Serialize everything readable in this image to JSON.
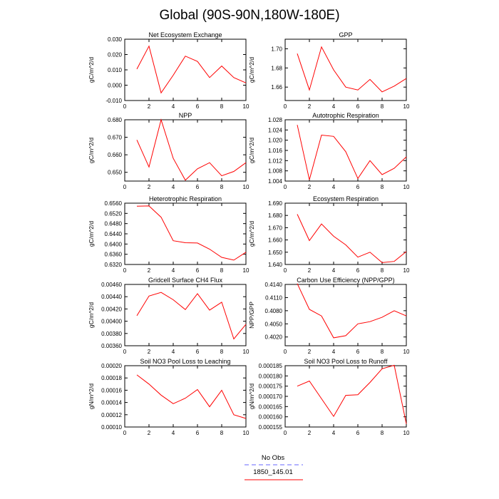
{
  "title": "Global (90S-90N,180W-180E)",
  "colors": {
    "model_line": "#ff0000",
    "obs_line": "#6666ff",
    "axes": "#000000"
  },
  "legend": [
    {
      "label": "No Obs",
      "color": "#6666ff",
      "dash": true
    },
    {
      "label": "1850_145.01",
      "color": "#ff0000",
      "dash": false
    }
  ],
  "chart_data": [
    {
      "type": "line",
      "title": "Net Ecosystem Exchange",
      "ylabel": "gC/m^2/d",
      "xlim": [
        0,
        10
      ],
      "xticks": [
        "0",
        "2",
        "4",
        "6",
        "8",
        "10"
      ],
      "ylim": [
        -0.01,
        0.03
      ],
      "yticks": [
        "-0.010",
        "0.000",
        "0.010",
        "0.020",
        "0.030"
      ],
      "series": [
        {
          "x": [
            1,
            2,
            3,
            4,
            5,
            6,
            7,
            8,
            9,
            10
          ],
          "values": [
            0.0105,
            0.0255,
            -0.005,
            0.0065,
            0.019,
            0.0155,
            0.005,
            0.0125,
            0.005,
            0.0015
          ]
        }
      ]
    },
    {
      "type": "line",
      "title": "GPP",
      "ylabel": "gC/m^2/d",
      "xlim": [
        0,
        10
      ],
      "xticks": [
        "0",
        "2",
        "4",
        "6",
        "8",
        "10"
      ],
      "ylim": [
        1.646,
        1.71
      ],
      "yticks": [
        "1.66",
        "1.68",
        "1.70"
      ],
      "series": [
        {
          "x": [
            1,
            2,
            3,
            4,
            5,
            6,
            7,
            8,
            9,
            10
          ],
          "values": [
            1.695,
            1.657,
            1.702,
            1.678,
            1.66,
            1.657,
            1.668,
            1.655,
            1.661,
            1.669
          ]
        }
      ]
    },
    {
      "type": "line",
      "title": "NPP",
      "ylabel": "gC/m^2/d",
      "xlim": [
        0,
        10
      ],
      "xticks": [
        "0",
        "2",
        "4",
        "6",
        "8",
        "10"
      ],
      "ylim": [
        0.645,
        0.68
      ],
      "yticks": [
        "0.650",
        "0.660",
        "0.670",
        "0.680"
      ],
      "series": [
        {
          "x": [
            1,
            2,
            3,
            4,
            5,
            6,
            7,
            8,
            9,
            10
          ],
          "values": [
            0.6685,
            0.653,
            0.68,
            0.658,
            0.6455,
            0.652,
            0.6555,
            0.648,
            0.6505,
            0.6555
          ]
        }
      ]
    },
    {
      "type": "line",
      "title": "Autotrophic Respiration",
      "ylabel": "gC/m^2/d",
      "xlim": [
        0,
        10
      ],
      "xticks": [
        "0",
        "2",
        "4",
        "6",
        "8",
        "10"
      ],
      "ylim": [
        1.004,
        1.028
      ],
      "yticks": [
        "1.004",
        "1.008",
        "1.012",
        "1.016",
        "1.020",
        "1.024",
        "1.028"
      ],
      "series": [
        {
          "x": [
            1,
            2,
            3,
            4,
            5,
            6,
            7,
            8,
            9,
            10
          ],
          "values": [
            1.026,
            1.0045,
            1.022,
            1.0215,
            1.0155,
            1.005,
            1.012,
            1.0065,
            1.009,
            1.0135
          ]
        }
      ]
    },
    {
      "type": "line",
      "title": "Heterotrophic Respiration",
      "ylabel": "gC/m^2/d",
      "xlim": [
        0,
        10
      ],
      "xticks": [
        "0",
        "2",
        "4",
        "6",
        "8",
        "10"
      ],
      "ylim": [
        0.632,
        0.656
      ],
      "yticks": [
        "0.6320",
        "0.6360",
        "0.6400",
        "0.6440",
        "0.6480",
        "0.6520",
        "0.6560"
      ],
      "series": [
        {
          "x": [
            1,
            2,
            3,
            4,
            5,
            6,
            7,
            8,
            9,
            10
          ],
          "values": [
            0.6548,
            0.6549,
            0.6505,
            0.6413,
            0.6405,
            0.6404,
            0.638,
            0.6348,
            0.6337,
            0.6368
          ]
        }
      ]
    },
    {
      "type": "line",
      "title": "Ecosystem Respiration",
      "ylabel": "gC/m^2/d",
      "xlim": [
        0,
        10
      ],
      "xticks": [
        "0",
        "2",
        "4",
        "6",
        "8",
        "10"
      ],
      "ylim": [
        1.64,
        1.69
      ],
      "yticks": [
        "1.640",
        "1.650",
        "1.660",
        "1.670",
        "1.680",
        "1.690"
      ],
      "series": [
        {
          "x": [
            1,
            2,
            3,
            4,
            5,
            6,
            7,
            8,
            9,
            10
          ],
          "values": [
            1.681,
            1.6595,
            1.673,
            1.663,
            1.656,
            1.646,
            1.65,
            1.6415,
            1.6425,
            1.6505
          ]
        }
      ]
    },
    {
      "type": "line",
      "title": "Gridcell Surface CH4 Flux",
      "ylabel": "gC/m^2/d",
      "xlim": [
        0,
        10
      ],
      "xticks": [
        "0",
        "2",
        "4",
        "6",
        "8",
        "10"
      ],
      "ylim": [
        0.0036,
        0.0046
      ],
      "yticks": [
        "0.00360",
        "0.00380",
        "0.00400",
        "0.00420",
        "0.00440",
        "0.00460"
      ],
      "series": [
        {
          "x": [
            1,
            2,
            3,
            4,
            5,
            6,
            7,
            8,
            9,
            10
          ],
          "values": [
            0.00409,
            0.00441,
            0.00447,
            0.00435,
            0.00419,
            0.00445,
            0.00418,
            0.00431,
            0.00371,
            0.00395
          ]
        }
      ]
    },
    {
      "type": "line",
      "title": "Carbon Use Efficiency (NPP/GPP)",
      "ylabel": "NPP/GPP",
      "xlim": [
        0,
        10
      ],
      "xticks": [
        "0",
        "2",
        "4",
        "6",
        "8",
        "10"
      ],
      "ylim": [
        0.4,
        0.414
      ],
      "yticks": [
        "0.4020",
        "0.4050",
        "0.4080",
        "0.4110",
        "0.4140"
      ],
      "series": [
        {
          "x": [
            1,
            2,
            3,
            4,
            5,
            6,
            7,
            8,
            9,
            10
          ],
          "values": [
            0.4142,
            0.4083,
            0.4068,
            0.4018,
            0.4023,
            0.405,
            0.4055,
            0.4065,
            0.408,
            0.4068
          ]
        }
      ]
    },
    {
      "type": "line",
      "title": "Soil NO3 Pool Loss to Leaching",
      "ylabel": "gN/m^2/d",
      "xlim": [
        0,
        10
      ],
      "xticks": [
        "0",
        "2",
        "4",
        "6",
        "8",
        "10"
      ],
      "ylim": [
        0.0001,
        0.0002
      ],
      "yticks": [
        "0.00010",
        "0.00012",
        "0.00014",
        "0.00016",
        "0.00018",
        "0.00020"
      ],
      "series": [
        {
          "x": [
            1,
            2,
            3,
            4,
            5,
            6,
            7,
            8,
            9,
            10
          ],
          "values": [
            0.000185,
            0.00017,
            0.000152,
            0.000138,
            0.000147,
            0.000161,
            0.000133,
            0.00016,
            0.00012,
            0.000114
          ]
        }
      ]
    },
    {
      "type": "line",
      "title": "Soil NO3 Pool Loss to Runoff",
      "ylabel": "gN/m^2/d",
      "xlim": [
        0,
        10
      ],
      "xticks": [
        "0",
        "2",
        "4",
        "6",
        "8",
        "10"
      ],
      "ylim": [
        0.000155,
        0.000185
      ],
      "yticks": [
        "0.000155",
        "0.000160",
        "0.000165",
        "0.000170",
        "0.000175",
        "0.000180",
        "0.000185"
      ],
      "series": [
        {
          "x": [
            1,
            2,
            4,
            5,
            6,
            7,
            8,
            9,
            10
          ],
          "values": [
            0.000175,
            0.0001775,
            0.0001602,
            0.0001705,
            0.0001708,
            0.0001768,
            0.0001835,
            0.0001852,
            0.0001565
          ]
        }
      ]
    }
  ]
}
